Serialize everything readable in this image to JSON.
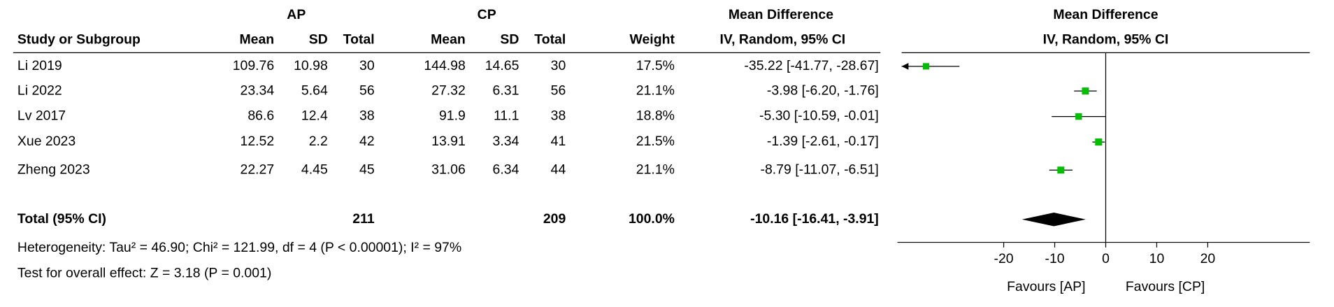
{
  "chart_data": {
    "type": "forest",
    "groups": [
      "AP",
      "CP"
    ],
    "headers": {
      "study": "Study or Subgroup",
      "mean": "Mean",
      "sd": "SD",
      "total": "Total",
      "weight": "Weight",
      "effect": "Mean Difference",
      "method": "IV, Random, 95% CI"
    },
    "studies": [
      {
        "name": "Li 2019",
        "ap": {
          "mean": 109.76,
          "sd": 10.98,
          "total": 30
        },
        "cp": {
          "mean": 144.98,
          "sd": 14.65,
          "total": 30
        },
        "weight": 17.5,
        "weight_label": "17.5%",
        "md": -35.22,
        "ci": [
          -41.77,
          -28.67
        ],
        "md_label": "-35.22 [-41.77, -28.67]"
      },
      {
        "name": "Li 2022",
        "ap": {
          "mean": 23.34,
          "sd": 5.64,
          "total": 56
        },
        "cp": {
          "mean": 27.32,
          "sd": 6.31,
          "total": 56
        },
        "weight": 21.1,
        "weight_label": "21.1%",
        "md": -3.98,
        "ci": [
          -6.2,
          -1.76
        ],
        "md_label": "-3.98 [-6.20, -1.76]"
      },
      {
        "name": "Lv 2017",
        "ap": {
          "mean": 86.6,
          "sd": 12.4,
          "total": 38
        },
        "cp": {
          "mean": 91.9,
          "sd": 11.1,
          "total": 38
        },
        "weight": 18.8,
        "weight_label": "18.8%",
        "md": -5.3,
        "ci": [
          -10.59,
          -0.01
        ],
        "md_label": "-5.30 [-10.59, -0.01]"
      },
      {
        "name": "Xue 2023",
        "ap": {
          "mean": 12.52,
          "sd": 2.2,
          "total": 42
        },
        "cp": {
          "mean": 13.91,
          "sd": 3.34,
          "total": 41
        },
        "weight": 21.5,
        "weight_label": "21.5%",
        "md": -1.39,
        "ci": [
          -2.61,
          -0.17
        ],
        "md_label": "-1.39 [-2.61, -0.17]"
      },
      {
        "name": "Zheng 2023",
        "ap": {
          "mean": 22.27,
          "sd": 4.45,
          "total": 45
        },
        "cp": {
          "mean": 31.06,
          "sd": 6.34,
          "total": 44
        },
        "weight": 21.1,
        "weight_label": "21.1%",
        "md": -8.79,
        "ci": [
          -11.07,
          -6.51
        ],
        "md_label": "-8.79 [-11.07, -6.51]"
      }
    ],
    "total": {
      "name": "Total (95% CI)",
      "ap_total": 211,
      "cp_total": 209,
      "weight": 100.0,
      "weight_label": "100.0%",
      "md": -10.16,
      "ci": [
        -16.41,
        -3.91
      ],
      "md_label": "-10.16 [-16.41, -3.91]"
    },
    "heterogeneity": "Heterogeneity: Tau² = 46.90; Chi² = 121.99, df = 4 (P < 0.00001); I² = 97%",
    "overall_effect": "Test for overall effect: Z = 3.18 (P = 0.001)",
    "xlim": [
      -40,
      40
    ],
    "xticks": [
      -20,
      -10,
      0,
      10,
      20
    ],
    "favours": [
      "Favours [AP]",
      "Favours [CP]"
    ],
    "marker_color": "#00c000",
    "diamond_color": "#000000"
  }
}
